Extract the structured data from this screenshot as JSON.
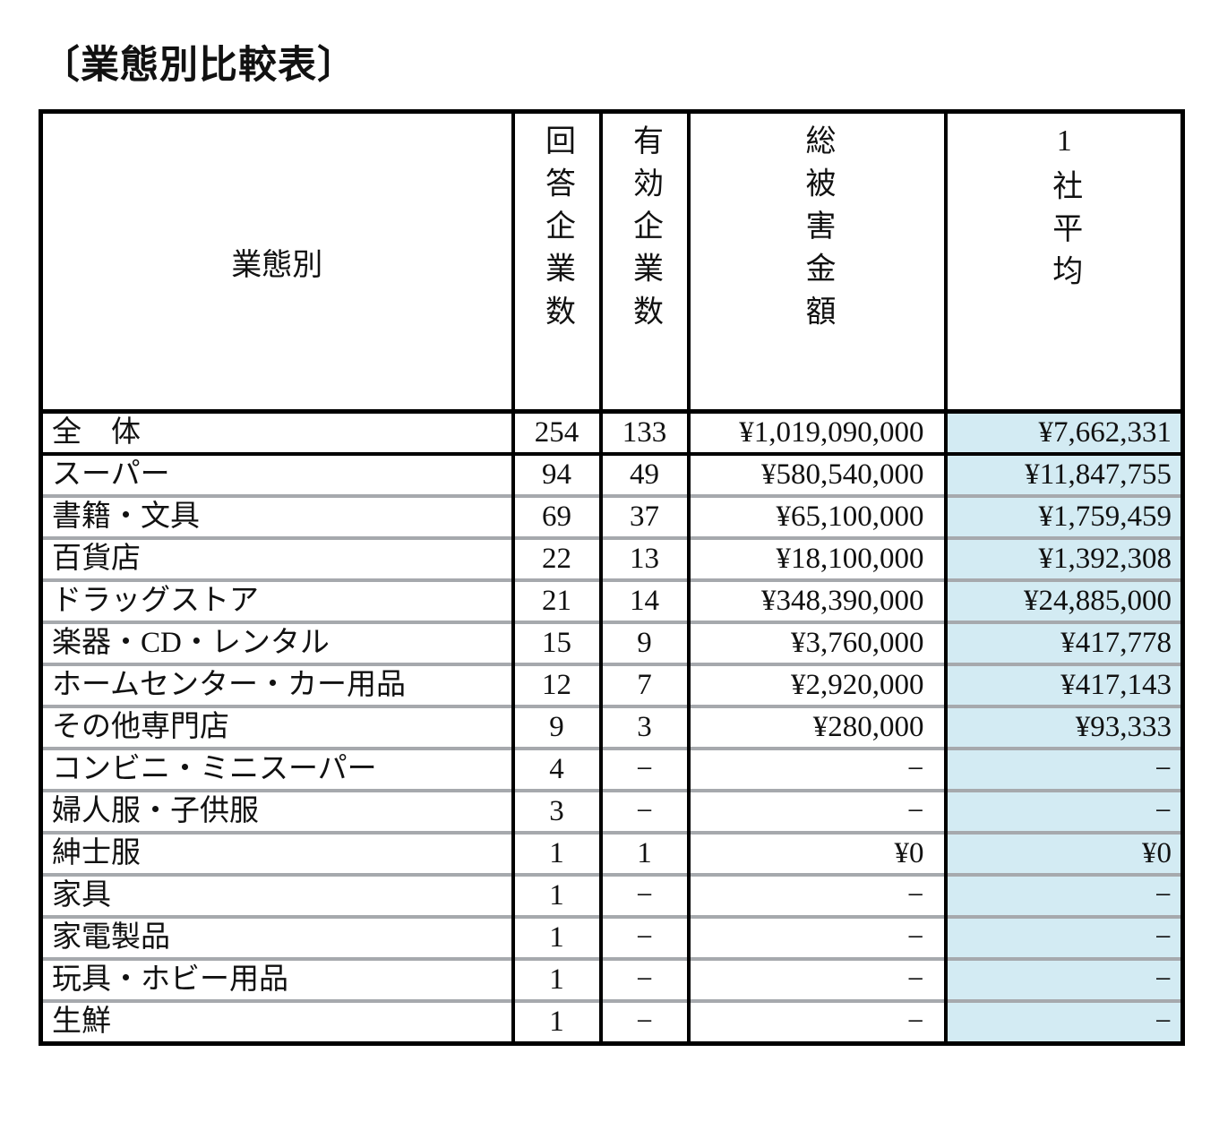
{
  "title": "〔業態別比較表〕",
  "colors": {
    "highlight_column_bg": "#d3ebf3",
    "row_separator": "#a6a9ad",
    "table_border": "#000000"
  },
  "table": {
    "col_headers": {
      "category": "業態別",
      "respondents": "回答企業数",
      "valid": "有効企業数",
      "total_damage": "総被害金額",
      "per_company_avg": "1社平均"
    },
    "rows": [
      {
        "category": "全　体",
        "respondents": "254",
        "valid": "133",
        "total_damage": "¥1,019,090,000",
        "per_company_avg": "¥7,662,331"
      },
      {
        "category": "スーパー",
        "respondents": "94",
        "valid": "49",
        "total_damage": "¥580,540,000",
        "per_company_avg": "¥11,847,755"
      },
      {
        "category": "書籍・文具",
        "respondents": "69",
        "valid": "37",
        "total_damage": "¥65,100,000",
        "per_company_avg": "¥1,759,459"
      },
      {
        "category": "百貨店",
        "respondents": "22",
        "valid": "13",
        "total_damage": "¥18,100,000",
        "per_company_avg": "¥1,392,308"
      },
      {
        "category": "ドラッグストア",
        "respondents": "21",
        "valid": "14",
        "total_damage": "¥348,390,000",
        "per_company_avg": "¥24,885,000"
      },
      {
        "category": "楽器・CD・レンタル",
        "respondents": "15",
        "valid": "9",
        "total_damage": "¥3,760,000",
        "per_company_avg": "¥417,778"
      },
      {
        "category": "ホームセンター・カー用品",
        "respondents": "12",
        "valid": "7",
        "total_damage": "¥2,920,000",
        "per_company_avg": "¥417,143"
      },
      {
        "category": "その他専門店",
        "respondents": "9",
        "valid": "3",
        "total_damage": "¥280,000",
        "per_company_avg": "¥93,333"
      },
      {
        "category": "コンビニ・ミニスーパー",
        "respondents": "4",
        "valid": "−",
        "total_damage": "−",
        "per_company_avg": "−"
      },
      {
        "category": "婦人服・子供服",
        "respondents": "3",
        "valid": "−",
        "total_damage": "−",
        "per_company_avg": "−"
      },
      {
        "category": "紳士服",
        "respondents": "1",
        "valid": "1",
        "total_damage": "¥0",
        "per_company_avg": "¥0"
      },
      {
        "category": "家具",
        "respondents": "1",
        "valid": "−",
        "total_damage": "−",
        "per_company_avg": "−"
      },
      {
        "category": "家電製品",
        "respondents": "1",
        "valid": "−",
        "total_damage": "−",
        "per_company_avg": "−"
      },
      {
        "category": "玩具・ホビー用品",
        "respondents": "1",
        "valid": "−",
        "total_damage": "−",
        "per_company_avg": "−"
      },
      {
        "category": "生鮮",
        "respondents": "1",
        "valid": "−",
        "total_damage": "−",
        "per_company_avg": "−"
      }
    ]
  }
}
